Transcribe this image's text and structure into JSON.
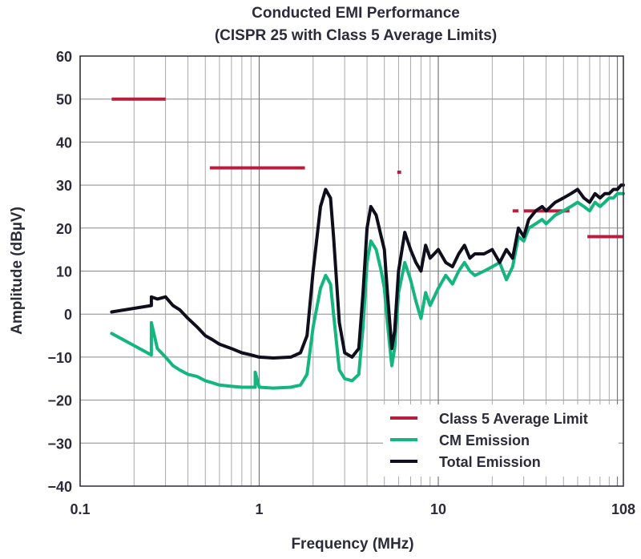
{
  "chart_data": {
    "type": "line",
    "title": "Conducted EMI Performance",
    "subtitle": "(CISPR 25 with Class 5 Average Limits)",
    "xlabel": "Frequency (MHz)",
    "ylabel": "Amplitude (dBµV)",
    "x_scale": "log",
    "xlim": [
      0.1,
      108
    ],
    "ylim": [
      -40,
      60
    ],
    "x_ticks": [
      {
        "value": 0.1,
        "label": "0.1"
      },
      {
        "value": 1,
        "label": "1"
      },
      {
        "value": 10,
        "label": "10"
      },
      {
        "value": 108,
        "label": "108"
      }
    ],
    "y_ticks": [
      {
        "value": 60,
        "label": "60"
      },
      {
        "value": 50,
        "label": "50"
      },
      {
        "value": 40,
        "label": "40"
      },
      {
        "value": 30,
        "label": "30"
      },
      {
        "value": 20,
        "label": "20"
      },
      {
        "value": 10,
        "label": "10"
      },
      {
        "value": 0,
        "label": "0"
      },
      {
        "value": -10,
        "label": "−10"
      },
      {
        "value": -20,
        "label": "−20"
      },
      {
        "value": -30,
        "label": "−30"
      },
      {
        "value": -40,
        "label": "−40"
      }
    ],
    "grid": true,
    "legend_position": "bottom-right",
    "legend": [
      {
        "label": "Class 5 Average Limit",
        "color": "#b5203f"
      },
      {
        "label": "CM Emission",
        "color": "#14b57f"
      },
      {
        "label": "Total Emission",
        "color": "#0e0e1c"
      }
    ],
    "limit_segments": [
      {
        "x": [
          0.15,
          0.3
        ],
        "y": 50
      },
      {
        "x": [
          0.53,
          1.8
        ],
        "y": 34
      },
      {
        "x": [
          5.9,
          6.2
        ],
        "y": 33
      },
      {
        "x": [
          26,
          28
        ],
        "y": 24
      },
      {
        "x": [
          30,
          54
        ],
        "y": 24
      },
      {
        "x": [
          68,
          108
        ],
        "y": 18
      }
    ],
    "series": [
      {
        "name": "Total Emission",
        "color": "#0e0e1c",
        "x": [
          0.15,
          0.25,
          0.25,
          0.27,
          0.3,
          0.33,
          0.36,
          0.4,
          0.45,
          0.5,
          0.55,
          0.6,
          0.7,
          0.8,
          0.9,
          1.0,
          1.2,
          1.5,
          1.7,
          1.85,
          2.0,
          2.2,
          2.35,
          2.5,
          2.6,
          2.8,
          3.0,
          3.3,
          3.6,
          3.8,
          4.0,
          4.2,
          4.5,
          4.8,
          5.0,
          5.2,
          5.5,
          5.7,
          6.0,
          6.5,
          7.0,
          7.5,
          8.0,
          8.5,
          9.0,
          10,
          11,
          12,
          13,
          14,
          15,
          16,
          18,
          20,
          22,
          24,
          26,
          28,
          30,
          32,
          35,
          38,
          40,
          45,
          50,
          55,
          60,
          65,
          70,
          75,
          80,
          85,
          90,
          95,
          100,
          105,
          108
        ],
        "values": [
          0.5,
          2,
          4,
          3.5,
          4,
          2,
          1,
          -1,
          -3,
          -5,
          -6,
          -7,
          -8,
          -9,
          -9.5,
          -10,
          -10.2,
          -10,
          -9,
          -5,
          10,
          25,
          29,
          27,
          18,
          -2,
          -9,
          -10,
          -8,
          5,
          20,
          25,
          23,
          18,
          15,
          5,
          -8,
          -4,
          10,
          19,
          15,
          12,
          10,
          16,
          13,
          15,
          12,
          11,
          14,
          16,
          13,
          14,
          14,
          15,
          12,
          15,
          13,
          20,
          18,
          22,
          24,
          25,
          24,
          26,
          27,
          28,
          29,
          27,
          26,
          28,
          27,
          28,
          28,
          29,
          29,
          30,
          30
        ]
      },
      {
        "name": "CM Emission",
        "color": "#14b57f",
        "x": [
          0.15,
          0.25,
          0.25,
          0.27,
          0.3,
          0.33,
          0.36,
          0.4,
          0.45,
          0.5,
          0.55,
          0.6,
          0.7,
          0.8,
          0.9,
          0.95,
          0.95,
          1.0,
          1.2,
          1.5,
          1.7,
          1.85,
          2.0,
          2.2,
          2.35,
          2.5,
          2.6,
          2.8,
          3.0,
          3.3,
          3.6,
          3.8,
          4.0,
          4.2,
          4.5,
          4.8,
          5.0,
          5.2,
          5.5,
          5.7,
          6.0,
          6.5,
          7.0,
          7.5,
          8.0,
          8.5,
          9.0,
          10,
          11,
          12,
          13,
          14,
          15,
          16,
          18,
          20,
          22,
          24,
          26,
          28,
          30,
          32,
          35,
          38,
          40,
          45,
          50,
          55,
          60,
          65,
          70,
          75,
          80,
          85,
          90,
          95,
          100,
          105,
          108
        ],
        "values": [
          -4.5,
          -9.5,
          -2,
          -8,
          -10,
          -12,
          -13,
          -14,
          -14.5,
          -15.5,
          -16,
          -16.5,
          -16.8,
          -17,
          -17,
          -17,
          -13.5,
          -17,
          -17.2,
          -17,
          -16.5,
          -14,
          -3,
          6,
          9,
          7,
          0,
          -13,
          -15,
          -15.5,
          -14,
          -3,
          12,
          17,
          15,
          10,
          6,
          -2,
          -12,
          -8,
          5,
          12,
          8,
          3,
          -1,
          5,
          2,
          6,
          9,
          7,
          10,
          12,
          10,
          9,
          10,
          11,
          12,
          8,
          11,
          18,
          17,
          20,
          21,
          22,
          21,
          23,
          24,
          25,
          26,
          25,
          24,
          26,
          25,
          26,
          27,
          27,
          28,
          28,
          28
        ]
      }
    ]
  }
}
